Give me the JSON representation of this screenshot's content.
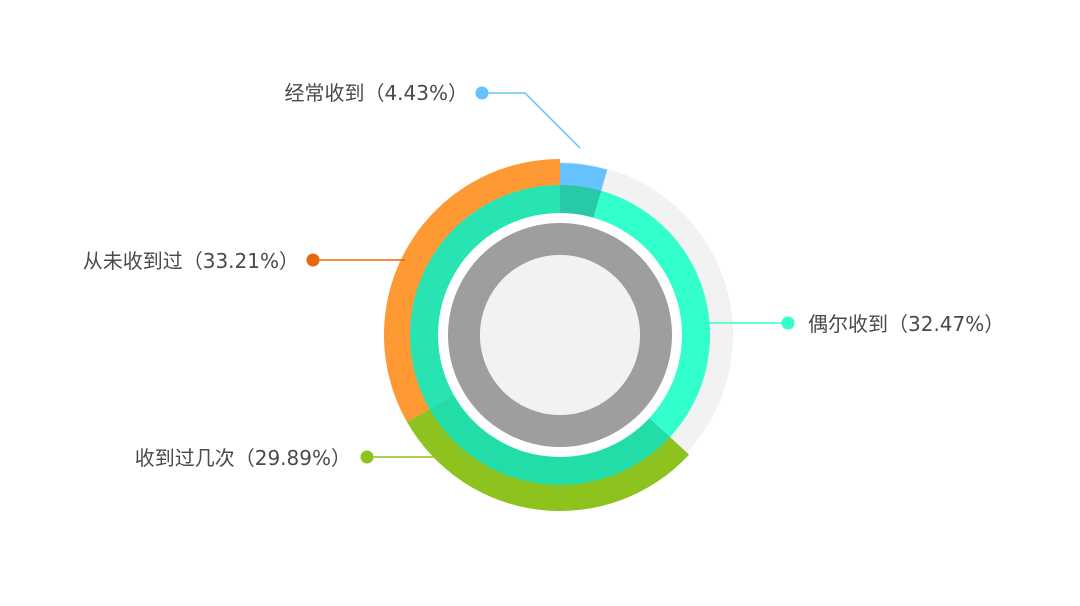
{
  "chart_data": {
    "type": "pie",
    "variant": "nested-donut",
    "categories": [
      "经常收到",
      "偶尔收到",
      "收到过几次",
      "从未收到过"
    ],
    "values": [
      4.43,
      32.47,
      29.89,
      33.21
    ],
    "labels": [
      "经常收到（4.43%）",
      "偶尔收到（32.47%）",
      "收到过几次（29.89%）",
      "从未收到过（33.21%）"
    ],
    "colors": [
      "#66c2ff",
      "#33ffcc",
      "#8dc21f",
      "#ff9933"
    ],
    "inner_colors": [
      "#27c9a7",
      "#33ffcc",
      "#22dda8",
      "#27e4b2"
    ],
    "dot_colors": [
      "#66c2ff",
      "#33ffcc",
      "#8dc21f",
      "#e8660c"
    ],
    "track_color": "#f2f2f2",
    "core_ring_color": "#9e9e9e",
    "center_color": "#f2f2f2",
    "start_angle_deg": 0,
    "direction": "clockwise",
    "legend": "none",
    "title": "",
    "xlabel": "",
    "ylabel": ""
  }
}
